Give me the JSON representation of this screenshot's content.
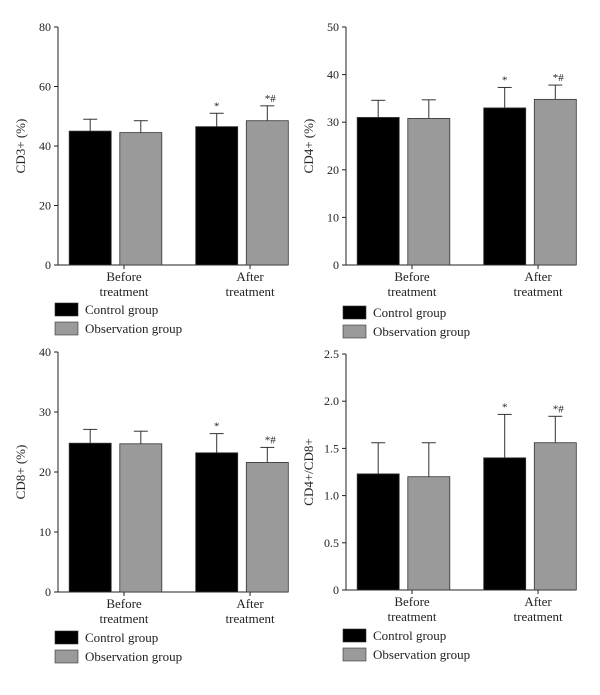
{
  "legend": {
    "control": "Control group",
    "observation": "Observation group"
  },
  "colors": {
    "control": "#000000",
    "observation": "#9a9a9a",
    "sig": "#555555"
  },
  "chart_data": [
    {
      "type": "bar",
      "ylabel": "CD3+ (%)",
      "ylim": [
        0,
        80
      ],
      "yticks": [
        "0",
        "20",
        "40",
        "60",
        "80"
      ],
      "categories": [
        [
          "Before",
          "treatment"
        ],
        [
          "After",
          "treatment"
        ]
      ],
      "series": [
        {
          "name": "Control group",
          "values": [
            45,
            46.5
          ],
          "errors": [
            4,
            4.5
          ]
        },
        {
          "name": "Observation group",
          "values": [
            44.5,
            48.5
          ],
          "errors": [
            4,
            5
          ]
        }
      ],
      "annotations": [
        [
          "",
          ""
        ],
        [
          "*",
          "*#"
        ]
      ]
    },
    {
      "type": "bar",
      "ylabel": "CD4+ (%)",
      "ylim": [
        0,
        50
      ],
      "yticks": [
        "0",
        "10",
        "20",
        "30",
        "40",
        "50"
      ],
      "categories": [
        [
          "Before",
          "treatment"
        ],
        [
          "After",
          "treatment"
        ]
      ],
      "series": [
        {
          "name": "Control group",
          "values": [
            31,
            33
          ],
          "errors": [
            3.6,
            4.3
          ]
        },
        {
          "name": "Observation group",
          "values": [
            30.8,
            34.8
          ],
          "errors": [
            3.9,
            3
          ]
        }
      ],
      "annotations": [
        [
          "",
          ""
        ],
        [
          "*",
          "*#"
        ]
      ]
    },
    {
      "type": "bar",
      "ylabel": "CD8+ (%)",
      "ylim": [
        0,
        40
      ],
      "yticks": [
        "0",
        "10",
        "20",
        "30",
        "40"
      ],
      "categories": [
        [
          "Before",
          "treatment"
        ],
        [
          "After",
          "treatment"
        ]
      ],
      "series": [
        {
          "name": "Control group",
          "values": [
            24.8,
            23.2
          ],
          "errors": [
            2.3,
            3.2
          ]
        },
        {
          "name": "Observation group",
          "values": [
            24.7,
            21.6
          ],
          "errors": [
            2.1,
            2.5
          ]
        }
      ],
      "annotations": [
        [
          "",
          ""
        ],
        [
          "*",
          "*#"
        ]
      ]
    },
    {
      "type": "bar",
      "ylabel": "CD4+/CD8+",
      "ylim": [
        0,
        2.5
      ],
      "yticks": [
        "0",
        "0.5",
        "1.0",
        "1.5",
        "2.0",
        "2.5"
      ],
      "categories": [
        [
          "Before",
          "treatment"
        ],
        [
          "After",
          "treatment"
        ]
      ],
      "series": [
        {
          "name": "Control group",
          "values": [
            1.23,
            1.4
          ],
          "errors": [
            0.33,
            0.46
          ]
        },
        {
          "name": "Observation group",
          "values": [
            1.2,
            1.56
          ],
          "errors": [
            0.36,
            0.28
          ]
        }
      ],
      "annotations": [
        [
          "",
          ""
        ],
        [
          "*",
          "*#"
        ]
      ]
    }
  ]
}
